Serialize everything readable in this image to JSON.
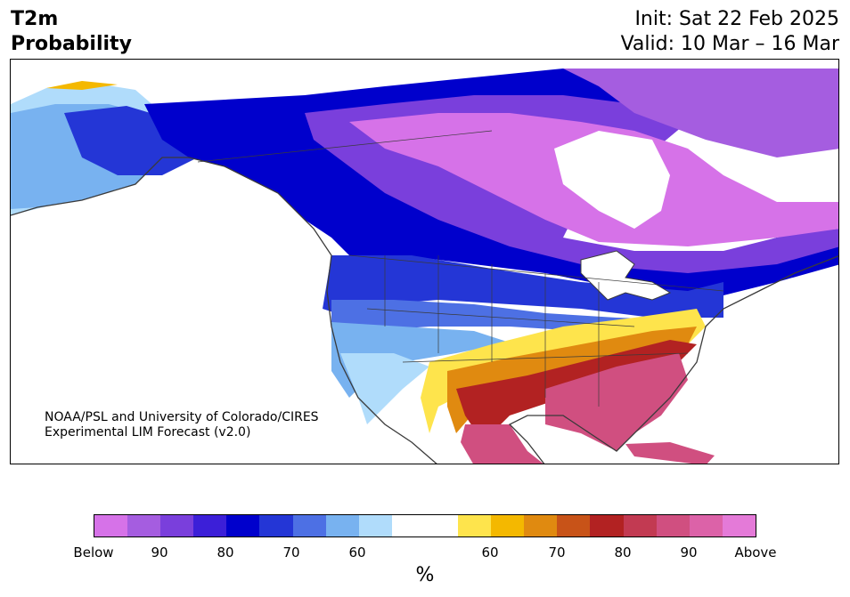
{
  "header": {
    "title_line1": "T2m",
    "title_line2": "Probability",
    "init": "Init: Sat 22 Feb 2025",
    "valid": "Valid: 10 Mar – 16 Mar"
  },
  "credit": {
    "line1": "NOAA/PSL and University of Colorado/CIRES",
    "line2": "Experimental LIM Forecast (v2.0)"
  },
  "colorbar": {
    "colors": [
      "#d672e8",
      "#a55de0",
      "#7a3fdc",
      "#3c1fd8",
      "#0000cc",
      "#2436d6",
      "#4d70e4",
      "#78b2f0",
      "#b0dcfb",
      "#ffffff",
      "#ffffff",
      "#fee44c",
      "#f4b800",
      "#e08a10",
      "#c85318",
      "#b22222",
      "#c23a52",
      "#d04f80",
      "#dc62a8",
      "#e47ad8"
    ],
    "tick_labels": [
      "Below",
      "90",
      "80",
      "70",
      "60",
      "60",
      "70",
      "80",
      "90",
      "Above"
    ],
    "unit": "%"
  },
  "map": {
    "colors": {
      "land_outline": "#3a3a3a",
      "below_strong": "#0000cc",
      "below_violet": "#d672e8",
      "above_red": "#b22222",
      "above_pink": "#d04f80",
      "above_yellow": "#fee44c"
    }
  }
}
